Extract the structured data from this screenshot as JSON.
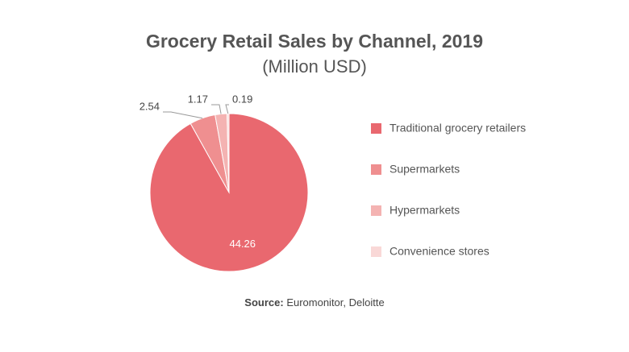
{
  "chart_data": {
    "type": "pie",
    "title": "Grocery Retail Sales by Channel, 2019",
    "subtitle": "(Million USD)",
    "categories": [
      "Traditional grocery retailers",
      "Supermarkets",
      "Hypermarkets",
      "Convenience stores"
    ],
    "values": [
      44.26,
      2.54,
      1.17,
      0.19
    ],
    "colors": [
      "#e9686f",
      "#ef8f90",
      "#f4b3b2",
      "#f9d8d7"
    ],
    "source": {
      "label": "Source:",
      "text": "Euromonitor, Deloitte"
    }
  }
}
